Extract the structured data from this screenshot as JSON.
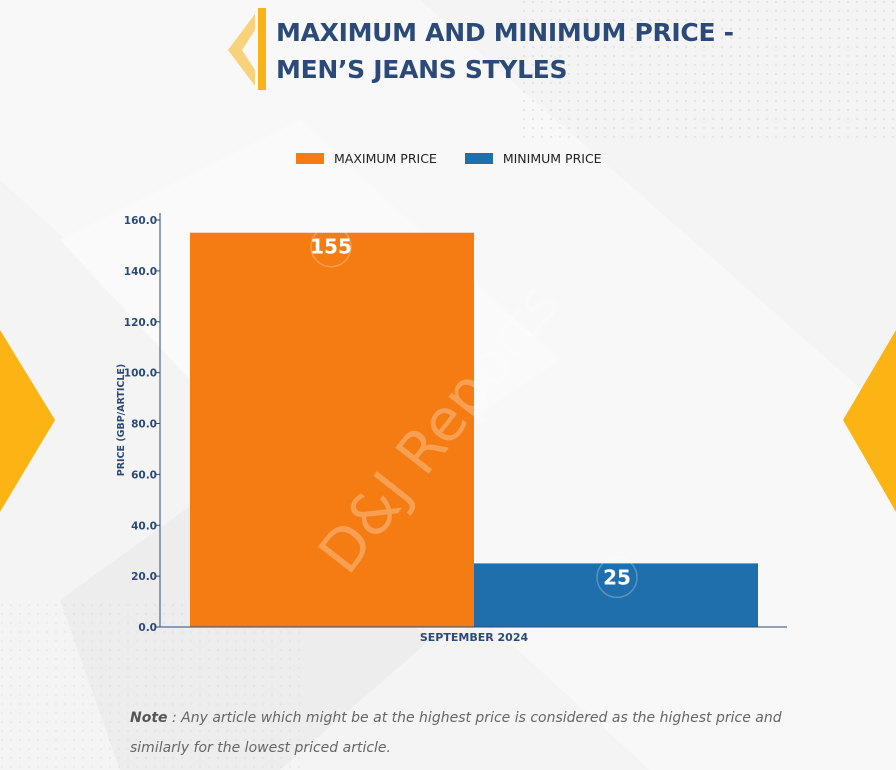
{
  "title": {
    "line1": "MAXIMUM AND MINIMUM PRICE -",
    "line2": "MEN’S JEANS STYLES"
  },
  "watermark": "D&J Reports",
  "note": {
    "label": "Note",
    "text": " : Any article which might be at the highest price is considered as the highest price and similarly for the lowest priced article."
  },
  "chart_data": {
    "type": "bar",
    "categories": [
      "SEPTEMBER 2024"
    ],
    "series": [
      {
        "name": "MAXIMUM PRICE",
        "values": [
          155
        ],
        "color": "#f47c12"
      },
      {
        "name": "MINIMUM PRICE",
        "values": [
          25
        ],
        "color": "#1f6fad"
      }
    ],
    "xlabel": "",
    "ylabel": "PRICE (GBP/ARTICLE)",
    "ylim": [
      0,
      160
    ],
    "yticks": [
      "0.0",
      "20.0",
      "40.0",
      "60.0",
      "80.0",
      "100.0",
      "120.0",
      "140.0",
      "160.0"
    ],
    "data_labels": [
      "155",
      "25"
    ],
    "legend_position": "top-center",
    "grid": false
  },
  "colors": {
    "accent": "#f7b316",
    "title": "#2c4a78",
    "axis": "#2c4a78"
  }
}
